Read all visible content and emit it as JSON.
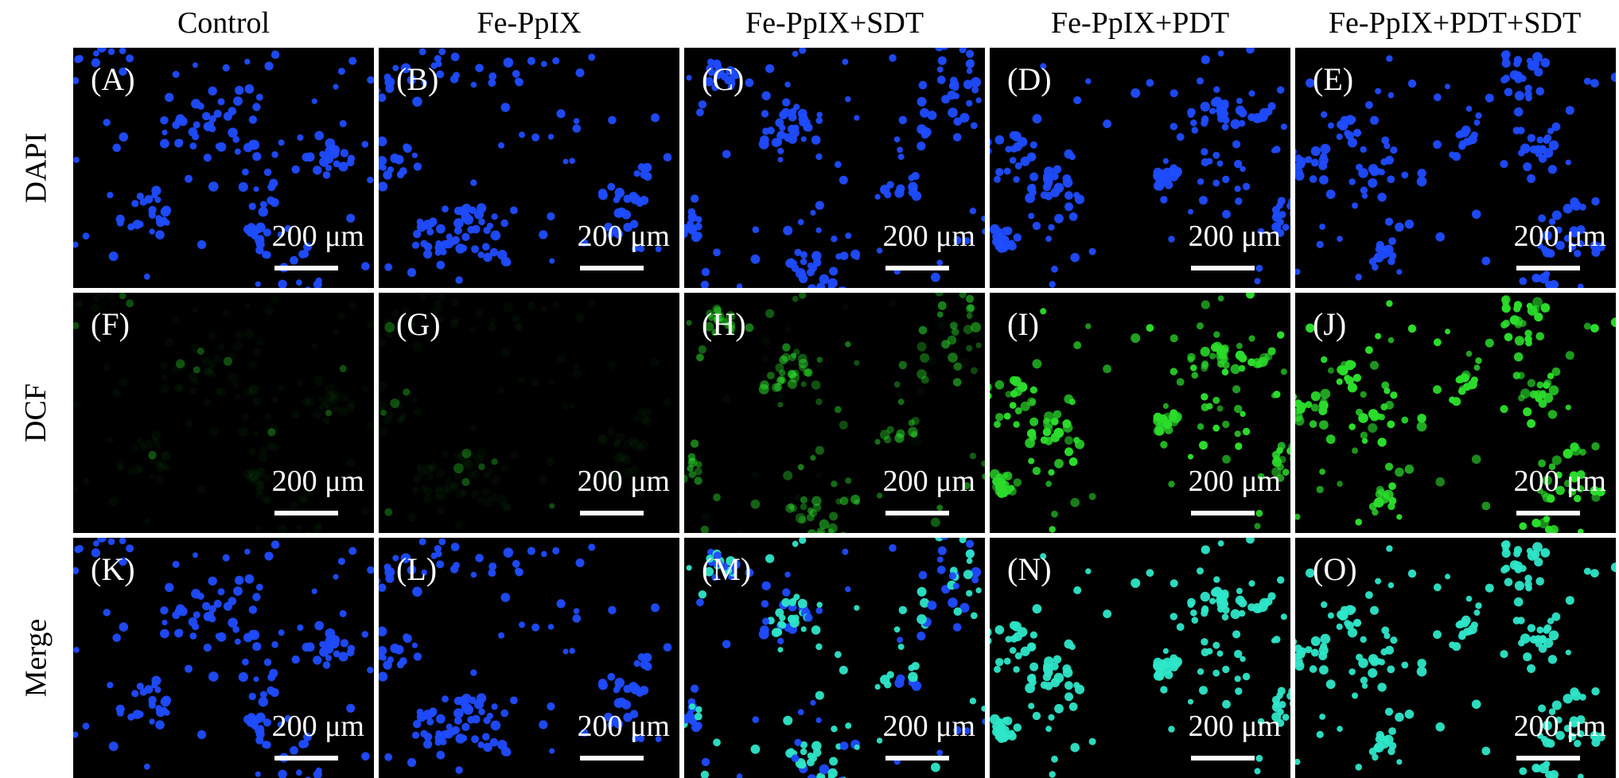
{
  "figure": {
    "columns": [
      {
        "label": "Control"
      },
      {
        "label": "Fe-PpIX"
      },
      {
        "label": "Fe-PpIX+SDT"
      },
      {
        "label": "Fe-PpIX+PDT"
      },
      {
        "label": "Fe-PpIX+PDT+SDT"
      }
    ],
    "rows": [
      {
        "label": "DAPI"
      },
      {
        "label": "DCF"
      },
      {
        "label": "Merge"
      }
    ],
    "panel_letters": [
      "(A)",
      "(B)",
      "(C)",
      "(D)",
      "(E)",
      "(F)",
      "(G)",
      "(H)",
      "(I)",
      "(J)",
      "(K)",
      "(L)",
      "(M)",
      "(N)",
      "(O)"
    ],
    "scale_bar_label": "200 μm",
    "channel_colors": {
      "dapi": "#1f4cff",
      "dcf": "#2bdc2b",
      "merge_cyan": "#2ee6c8",
      "background": "#000000"
    },
    "dcf_signal_level": [
      0.05,
      0.1,
      0.55,
      0.9,
      1.0
    ]
  }
}
